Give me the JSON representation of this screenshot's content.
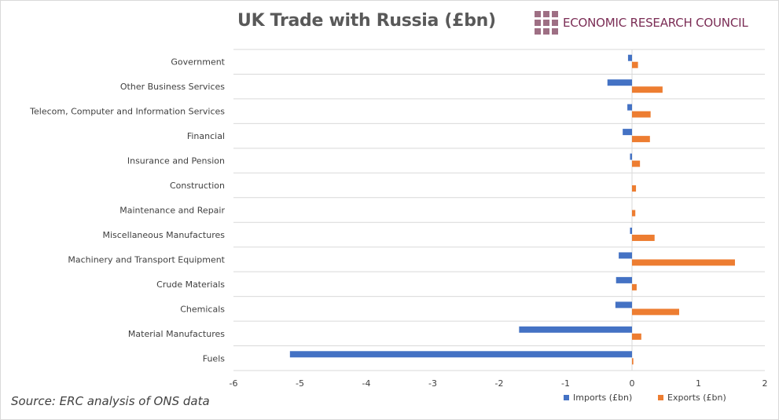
{
  "header": {
    "title": "UK Trade with Russia (£bn)",
    "logo_text": "ECONOMIC RESEARCH COUNCIL",
    "logo_color": "#9e6f84",
    "logo_text_color": "#7b2d55"
  },
  "footer": {
    "source": "Source: ERC analysis of ONS data"
  },
  "chart_data": {
    "type": "bar",
    "orientation": "horizontal",
    "title": "UK Trade with Russia (£bn)",
    "xlabel": "",
    "ylabel": "",
    "xlim": [
      -6,
      2
    ],
    "xticks": [
      -6,
      -5,
      -4,
      -3,
      -2,
      -1,
      0,
      1,
      2
    ],
    "grid": "horizontal category separators",
    "legend_position": "bottom-right",
    "categories": [
      "Government",
      "Other Business Services",
      "Telecom, Computer and Information Services",
      "Financial",
      "Insurance and Pension",
      "Construction",
      "Maintenance and Repair",
      "Miscellaneous Manufactures",
      "Machinery and Transport Equipment",
      "Crude Materials",
      "Chemicals",
      "Material Manufactures",
      "Fuels"
    ],
    "series": [
      {
        "name": "Imports (£bn)",
        "color": "#4472c4",
        "values": [
          -0.06,
          -0.37,
          -0.07,
          -0.14,
          -0.03,
          0.0,
          0.0,
          -0.03,
          -0.2,
          -0.24,
          -0.25,
          -1.7,
          -5.15
        ]
      },
      {
        "name": "Exports (£bn)",
        "color": "#ed7d31",
        "values": [
          0.09,
          0.46,
          0.28,
          0.27,
          0.12,
          0.06,
          0.05,
          0.34,
          1.55,
          0.07,
          0.71,
          0.14,
          0.02
        ]
      }
    ]
  }
}
